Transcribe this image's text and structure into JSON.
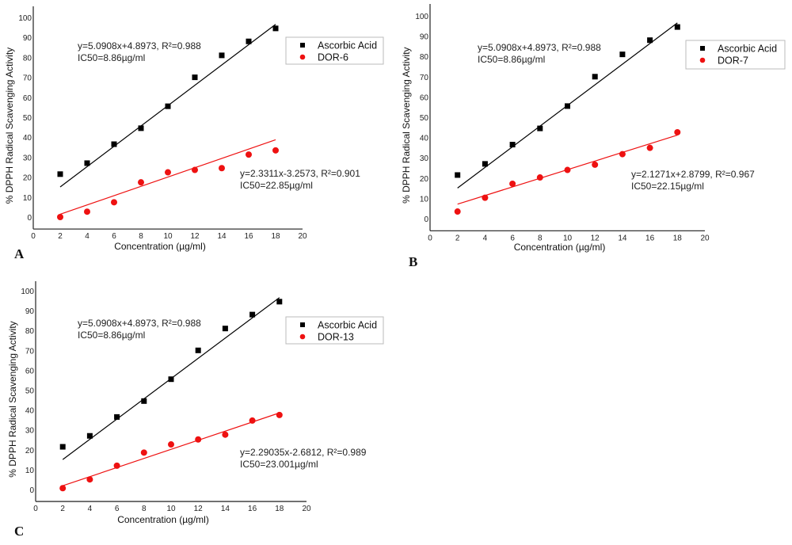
{
  "chart_data": [
    {
      "type": "scatter",
      "panel_label": "A",
      "xlabel": "Concentration (µg/ml)",
      "ylabel": "% DPPH Radical Scavenging Activity",
      "xlim": [
        0,
        20
      ],
      "ylim": [
        -6,
        102
      ],
      "x_ticks": [
        0,
        2,
        4,
        6,
        8,
        10,
        12,
        14,
        16,
        18,
        20
      ],
      "y_ticks": [
        0,
        10,
        20,
        30,
        40,
        50,
        60,
        70,
        80,
        90,
        100
      ],
      "grid": false,
      "legend_position": "top-right",
      "x": [
        2,
        4,
        6,
        8,
        10,
        12,
        14,
        16,
        18
      ],
      "series": [
        {
          "name": "Ascorbic Acid",
          "marker": "square",
          "color": "#000000",
          "values": [
            21.5,
            27,
            36.5,
            44.5,
            55.5,
            70,
            81,
            88,
            94.5
          ],
          "fit": {
            "slope": 5.0908,
            "intercept": 4.8973,
            "x_range": [
              2,
              18
            ]
          },
          "annotation": [
            "y=5.0908x+4.8973, R²=0.988",
            "IC50=8.86µg/ml"
          ]
        },
        {
          "name": "DOR-6",
          "marker": "circle",
          "color": "#ee1111",
          "values": [
            0,
            2.7,
            7.4,
            17.4,
            22.4,
            23.6,
            24.5,
            31.3,
            33.4
          ],
          "fit": {
            "slope": 2.3311,
            "intercept": -3.2573,
            "x_range": [
              2,
              18
            ]
          },
          "annotation": [
            "y=2.3311x-3.2573, R²=0.901",
            "IC50=22.85µg/ml"
          ]
        }
      ]
    },
    {
      "type": "scatter",
      "panel_label": "B",
      "xlabel": "Concentration (µg/ml)",
      "ylabel": "% DPPH Radical Scavenging Activity",
      "xlim": [
        0,
        20
      ],
      "ylim": [
        -6,
        102
      ],
      "x_ticks": [
        0,
        2,
        4,
        6,
        8,
        10,
        12,
        14,
        16,
        18,
        20
      ],
      "y_ticks": [
        0,
        10,
        20,
        30,
        40,
        50,
        60,
        70,
        80,
        90,
        100
      ],
      "grid": false,
      "legend_position": "top-right",
      "x": [
        2,
        4,
        6,
        8,
        10,
        12,
        14,
        16,
        18
      ],
      "series": [
        {
          "name": "Ascorbic Acid",
          "marker": "square",
          "color": "#000000",
          "values": [
            21.5,
            27,
            36.5,
            44.5,
            55.5,
            70,
            81,
            88,
            94.5
          ],
          "fit": {
            "slope": 5.0908,
            "intercept": 4.8973,
            "x_range": [
              2,
              18
            ]
          },
          "annotation": [
            "y=5.0908x+4.8973, R²=0.988",
            "IC50=8.86µg/ml"
          ]
        },
        {
          "name": "DOR-7",
          "marker": "circle",
          "color": "#ee1111",
          "values": [
            3.5,
            10.3,
            17.2,
            20.3,
            24,
            26.6,
            31.8,
            34.9,
            42.6
          ],
          "fit": {
            "slope": 2.1271,
            "intercept": 2.8799,
            "x_range": [
              2,
              18
            ]
          },
          "annotation": [
            "y=2.1271x+2.8799, R²=0.967",
            "IC50=22.15µg/ml"
          ]
        }
      ]
    },
    {
      "type": "scatter",
      "panel_label": "C",
      "xlabel": "Concentration (µg/ml)",
      "ylabel": "% DPPH Radical Scavenging Activity",
      "xlim": [
        0,
        20
      ],
      "ylim": [
        -6,
        102
      ],
      "x_ticks": [
        0,
        2,
        4,
        6,
        8,
        10,
        12,
        14,
        16,
        18,
        20
      ],
      "y_ticks": [
        0,
        10,
        20,
        30,
        40,
        50,
        60,
        70,
        80,
        90,
        100
      ],
      "grid": false,
      "legend_position": "top-right",
      "x": [
        2,
        4,
        6,
        8,
        10,
        12,
        14,
        16,
        18
      ],
      "series": [
        {
          "name": "Ascorbic Acid",
          "marker": "square",
          "color": "#000000",
          "values": [
            21.5,
            27,
            36.5,
            44.5,
            55.5,
            70,
            81,
            88,
            94.5
          ],
          "fit": {
            "slope": 5.0908,
            "intercept": 4.8973,
            "x_range": [
              2,
              18
            ]
          },
          "annotation": [
            "y=5.0908x+4.8973, R²=0.988",
            "IC50=8.86µg/ml"
          ]
        },
        {
          "name": "DOR-13",
          "marker": "circle",
          "color": "#ee1111",
          "values": [
            0.7,
            5.1,
            12,
            18.6,
            22.7,
            25.2,
            27.6,
            34.7,
            37.5
          ],
          "fit": {
            "slope": 2.29035,
            "intercept": -2.6812,
            "x_range": [
              2,
              18
            ]
          },
          "annotation": [
            "y=2.29035x-2.6812, R²=0.989",
            "IC50=23.001µg/ml"
          ]
        }
      ]
    }
  ]
}
